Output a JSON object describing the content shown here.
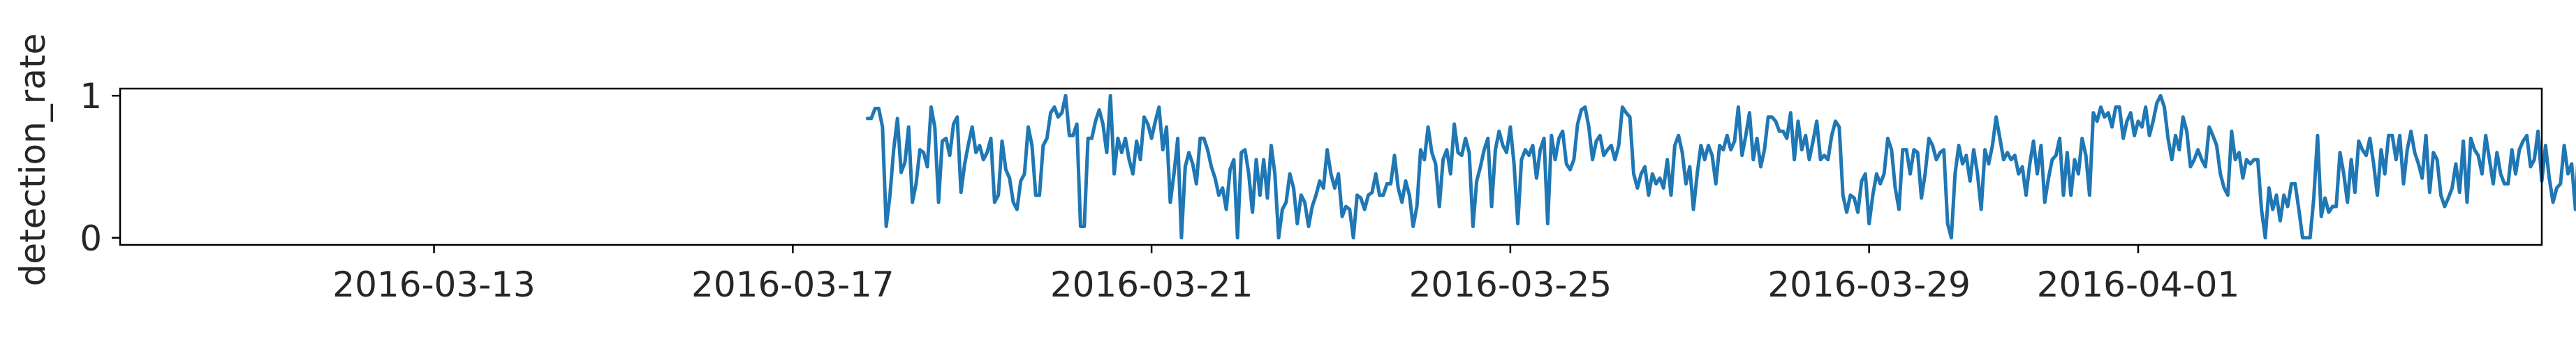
{
  "chart_data": {
    "type": "line",
    "title": "",
    "xlabel": "",
    "ylabel": "detection_rate",
    "x_type": "date",
    "xlim": [
      "2016-03-09T12:00",
      "2016-04-05T12:00"
    ],
    "ylim": [
      -0.05,
      1.05
    ],
    "grid": false,
    "legend": "none",
    "line_color": "#1f77b4",
    "x_ticks": [
      "2016-03-13",
      "2016-03-17",
      "2016-03-21",
      "2016-03-25",
      "2016-03-29",
      "2016-04-01"
    ],
    "y_ticks": [
      0,
      1
    ],
    "y_tick_labels": [
      "0",
      "1"
    ],
    "series": [
      {
        "x_start": "2016-03-17T20:00",
        "x_step_hours": 1,
        "values": [
          0.84,
          0.84,
          0.91,
          0.91,
          0.78,
          0.08,
          0.3,
          0.62,
          0.84,
          0.46,
          0.53,
          0.78,
          0.25,
          0.38,
          0.62,
          0.6,
          0.5,
          0.92,
          0.78,
          0.25,
          0.68,
          0.7,
          0.58,
          0.8,
          0.85,
          0.32,
          0.52,
          0.66,
          0.78,
          0.6,
          0.65,
          0.55,
          0.6,
          0.7,
          0.25,
          0.3,
          0.68,
          0.48,
          0.42,
          0.25,
          0.2,
          0.4,
          0.45,
          0.78,
          0.65,
          0.3,
          0.3,
          0.65,
          0.7,
          0.88,
          0.92,
          0.85,
          0.88,
          1.0,
          0.72,
          0.72,
          0.8,
          0.08,
          0.08,
          0.7,
          0.7,
          0.82,
          0.9,
          0.8,
          0.6,
          1.0,
          0.45,
          0.7,
          0.6,
          0.7,
          0.55,
          0.45,
          0.68,
          0.55,
          0.85,
          0.8,
          0.7,
          0.82,
          0.92,
          0.62,
          0.78,
          0.25,
          0.45,
          0.7,
          0.0,
          0.5,
          0.6,
          0.52,
          0.38,
          0.7,
          0.7,
          0.62,
          0.5,
          0.42,
          0.3,
          0.35,
          0.2,
          0.48,
          0.55,
          0.0,
          0.6,
          0.62,
          0.45,
          0.18,
          0.55,
          0.3,
          0.55,
          0.28,
          0.65,
          0.45,
          0.0,
          0.2,
          0.25,
          0.45,
          0.35,
          0.1,
          0.3,
          0.25,
          0.08,
          0.22,
          0.3,
          0.4,
          0.35,
          0.62,
          0.45,
          0.35,
          0.45,
          0.15,
          0.22,
          0.2,
          0.0,
          0.3,
          0.28,
          0.2,
          0.3,
          0.32,
          0.45,
          0.3,
          0.3,
          0.38,
          0.38,
          0.58,
          0.35,
          0.25,
          0.4,
          0.3,
          0.08,
          0.22,
          0.62,
          0.55,
          0.78,
          0.6,
          0.52,
          0.22,
          0.55,
          0.62,
          0.45,
          0.8,
          0.6,
          0.58,
          0.7,
          0.6,
          0.08,
          0.4,
          0.5,
          0.62,
          0.7,
          0.22,
          0.62,
          0.75,
          0.65,
          0.6,
          0.78,
          0.52,
          0.1,
          0.55,
          0.62,
          0.58,
          0.65,
          0.42,
          0.62,
          0.7,
          0.1,
          0.72,
          0.55,
          0.7,
          0.75,
          0.52,
          0.48,
          0.55,
          0.8,
          0.9,
          0.92,
          0.78,
          0.55,
          0.68,
          0.72,
          0.58,
          0.62,
          0.65,
          0.55,
          0.65,
          0.92,
          0.88,
          0.85,
          0.45,
          0.35,
          0.45,
          0.5,
          0.3,
          0.45,
          0.38,
          0.42,
          0.35,
          0.55,
          0.3,
          0.65,
          0.72,
          0.6,
          0.38,
          0.5,
          0.2,
          0.45,
          0.65,
          0.55,
          0.65,
          0.58,
          0.38,
          0.65,
          0.62,
          0.72,
          0.62,
          0.68,
          0.92,
          0.58,
          0.72,
          0.88,
          0.55,
          0.7,
          0.5,
          0.62,
          0.85,
          0.85,
          0.82,
          0.75,
          0.75,
          0.7,
          0.88,
          0.55,
          0.82,
          0.62,
          0.72,
          0.55,
          0.68,
          0.82,
          0.55,
          0.58,
          0.55,
          0.72,
          0.82,
          0.78,
          0.3,
          0.18,
          0.3,
          0.28,
          0.18,
          0.4,
          0.45,
          0.1,
          0.3,
          0.45,
          0.38,
          0.45,
          0.7,
          0.62,
          0.35,
          0.2,
          0.62,
          0.62,
          0.45,
          0.62,
          0.6,
          0.28,
          0.45,
          0.7,
          0.65,
          0.55,
          0.6,
          0.62,
          0.1,
          0.0,
          0.45,
          0.65,
          0.52,
          0.58,
          0.4,
          0.62,
          0.45,
          0.2,
          0.62,
          0.52,
          0.65,
          0.85,
          0.7,
          0.55,
          0.6,
          0.55,
          0.58,
          0.45,
          0.5,
          0.3,
          0.52,
          0.68,
          0.45,
          0.65,
          0.25,
          0.42,
          0.55,
          0.58,
          0.7,
          0.3,
          0.6,
          0.3,
          0.55,
          0.45,
          0.7,
          0.58,
          0.3,
          0.88,
          0.82,
          0.92,
          0.85,
          0.88,
          0.78,
          0.92,
          0.92,
          0.7,
          0.82,
          0.88,
          0.72,
          0.82,
          0.78,
          0.92,
          0.72,
          0.82,
          0.95,
          1.0,
          0.92,
          0.7,
          0.55,
          0.72,
          0.62,
          0.85,
          0.75,
          0.5,
          0.55,
          0.62,
          0.55,
          0.5,
          0.78,
          0.72,
          0.65,
          0.45,
          0.35,
          0.3,
          0.75,
          0.55,
          0.6,
          0.42,
          0.55,
          0.52,
          0.55,
          0.55,
          0.2,
          0.0,
          0.35,
          0.2,
          0.3,
          0.12,
          0.3,
          0.22,
          0.38,
          0.38,
          0.2,
          0.0,
          0.0,
          0.0,
          0.28,
          0.72,
          0.15,
          0.28,
          0.18,
          0.22,
          0.22,
          0.6,
          0.45,
          0.25,
          0.55,
          0.32,
          0.68,
          0.62,
          0.58,
          0.7,
          0.52,
          0.3,
          0.62,
          0.45,
          0.72,
          0.72,
          0.55,
          0.72,
          0.38,
          0.62,
          0.75,
          0.6,
          0.52,
          0.42,
          0.72,
          0.32,
          0.6,
          0.55,
          0.3,
          0.22,
          0.28,
          0.35,
          0.52,
          0.32,
          0.68,
          0.25,
          0.7,
          0.62,
          0.58,
          0.45,
          0.72,
          0.55,
          0.38,
          0.6,
          0.45,
          0.38,
          0.38,
          0.62,
          0.45,
          0.62,
          0.68,
          0.72,
          0.5,
          0.55,
          0.75,
          0.4,
          0.65,
          0.42,
          0.25,
          0.35,
          0.38,
          0.65,
          0.45,
          0.52,
          0.2,
          0.72,
          0.62,
          0.38,
          0.55,
          0.3,
          0.12,
          0.55,
          0.25,
          0.38,
          0.5,
          0.6,
          0.22,
          0.22,
          0.22,
          0.3,
          0.1,
          0.25,
          0.4,
          0.78,
          0.22,
          0.22,
          0.3,
          0.25,
          0.28,
          0.45,
          0.38,
          0.38
        ]
      }
    ]
  }
}
